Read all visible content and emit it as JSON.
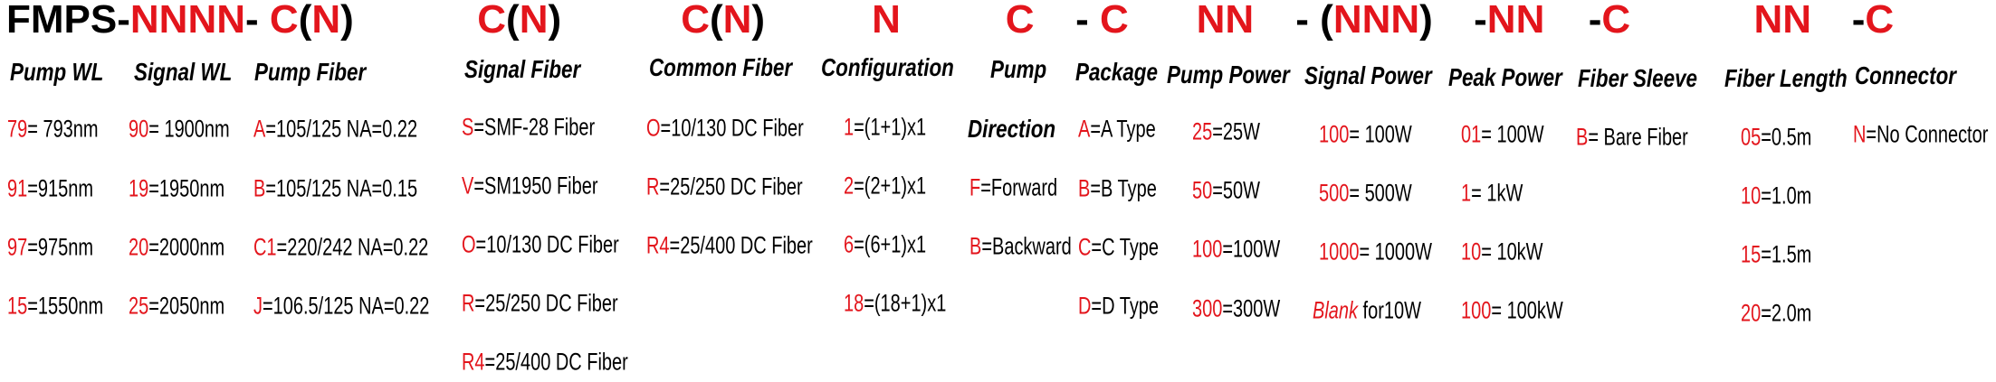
{
  "code_groups": [
    {
      "parts": [
        {
          "text": "FMPS-",
          "red": false
        },
        {
          "text": "NNNN",
          "red": true
        },
        {
          "text": "- ",
          "red": false
        },
        {
          "text": "C",
          "red": true
        },
        {
          "text": "(",
          "red": false
        },
        {
          "text": "N",
          "red": true
        },
        {
          "text": ")",
          "red": false
        }
      ]
    },
    {
      "parts": [
        {
          "text": "C",
          "red": true
        },
        {
          "text": "(",
          "red": false
        },
        {
          "text": "N",
          "red": true
        },
        {
          "text": ")",
          "red": false
        }
      ]
    },
    {
      "parts": [
        {
          "text": "C",
          "red": true
        },
        {
          "text": "(",
          "red": false
        },
        {
          "text": "N",
          "red": true
        },
        {
          "text": ")",
          "red": false
        }
      ]
    },
    {
      "parts": [
        {
          "text": "N",
          "red": true
        }
      ]
    },
    {
      "parts": [
        {
          "text": "C",
          "red": true
        }
      ]
    },
    {
      "parts": [
        {
          "text": "- ",
          "red": false
        },
        {
          "text": "C",
          "red": true
        }
      ]
    },
    {
      "parts": [
        {
          "text": "NN",
          "red": true
        }
      ]
    },
    {
      "parts": [
        {
          "text": "- (",
          "red": false
        },
        {
          "text": "NNN",
          "red": true
        },
        {
          "text": ")",
          "red": false
        }
      ]
    },
    {
      "parts": [
        {
          "text": "-",
          "red": false
        },
        {
          "text": "NN",
          "red": true
        }
      ]
    },
    {
      "parts": [
        {
          "text": "-",
          "red": false
        },
        {
          "text": "C",
          "red": true
        }
      ]
    },
    {
      "parts": [
        {
          "text": "NN",
          "red": true
        }
      ]
    },
    {
      "parts": [
        {
          "text": "-",
          "red": false
        },
        {
          "text": "C",
          "red": true
        }
      ]
    }
  ],
  "columns": [
    {
      "title": "Pump WL",
      "entries": [
        {
          "code": "79",
          "text": "= 793nm"
        },
        {
          "code": "91",
          "text": "=915nm"
        },
        {
          "code": "97",
          "text": "=975nm"
        },
        {
          "code": "15",
          "text": "=1550nm"
        }
      ]
    },
    {
      "title": "Signal WL",
      "entries": [
        {
          "code": "90",
          "text": "= 1900nm"
        },
        {
          "code": "19",
          "text": "=1950nm"
        },
        {
          "code": "20",
          "text": "=2000nm"
        },
        {
          "code": "25",
          "text": "=2050nm"
        }
      ]
    },
    {
      "title": "Pump Fiber",
      "entries": [
        {
          "code": "A",
          "text": "=105/125 NA=0.22"
        },
        {
          "code": "B",
          "text": "=105/125 NA=0.15"
        },
        {
          "code": "C1",
          "text": "=220/242 NA=0.22"
        },
        {
          "code": "J",
          "text": "=106.5/125 NA=0.22"
        }
      ]
    },
    {
      "title": "Signal Fiber",
      "entries": [
        {
          "code": "S",
          "text": "=SMF-28 Fiber"
        },
        {
          "code": "V",
          "text": "=SM1950 Fiber"
        },
        {
          "code": "O",
          "text": "=10/130 DC Fiber"
        },
        {
          "code": "R",
          "text": "=25/250 DC Fiber"
        },
        {
          "code": "R4",
          "text": "=25/400 DC Fiber"
        }
      ]
    },
    {
      "title": "Common Fiber",
      "entries": [
        {
          "code": "O",
          "text": "=10/130 DC Fiber"
        },
        {
          "code": "R",
          "text": "=25/250 DC Fiber"
        },
        {
          "code": "R4",
          "text": "=25/400 DC Fiber"
        }
      ]
    },
    {
      "title": "Configuration",
      "entries": [
        {
          "code": "1",
          "text": "=(1+1)x1"
        },
        {
          "code": "2",
          "text": "=(2+1)x1"
        },
        {
          "code": "6",
          "text": "=(6+1)x1"
        },
        {
          "code": "18",
          "text": "=(18+1)x1"
        }
      ]
    },
    {
      "title": "Pump",
      "subtitle": "Direction",
      "entries": [
        {
          "code": "F",
          "text": "=Forward"
        },
        {
          "code": "B",
          "text": "=Backward"
        }
      ]
    },
    {
      "title": "Package",
      "entries": [
        {
          "code": "A",
          "text": "=A Type"
        },
        {
          "code": "B",
          "text": "=B Type"
        },
        {
          "code": "C",
          "text": "=C Type"
        },
        {
          "code": "D",
          "text": "=D Type"
        }
      ]
    },
    {
      "title": "Pump Power",
      "entries": [
        {
          "code": "25",
          "text": "=25W"
        },
        {
          "code": "50",
          "text": "=50W"
        },
        {
          "code": "100",
          "text": "=100W"
        },
        {
          "code": "300",
          "text": "=300W"
        }
      ]
    },
    {
      "title": "Signal Power",
      "entries": [
        {
          "code": "100",
          "text": "= 100W"
        },
        {
          "code": "500",
          "text": "= 500W"
        },
        {
          "code": "1000",
          "text": "= 1000W"
        },
        {
          "code": "Blank",
          "text": " for10W",
          "code_italic": true
        }
      ]
    },
    {
      "title": "Peak Power",
      "entries": [
        {
          "code": "01",
          "text": "= 100W"
        },
        {
          "code": "1",
          "text": "= 1kW"
        },
        {
          "code": "10",
          "text": "= 10kW"
        },
        {
          "code": "100",
          "text": "= 100kW"
        }
      ]
    },
    {
      "title": "Fiber Sleeve",
      "entries": [
        {
          "code": "B",
          "text": "= Bare Fiber"
        }
      ]
    },
    {
      "title": "Fiber Length",
      "entries": [
        {
          "code": "05",
          "text": "=0.5m"
        },
        {
          "code": "10",
          "text": "=1.0m"
        },
        {
          "code": "15",
          "text": "=1.5m"
        },
        {
          "code": "20",
          "text": "=2.0m"
        }
      ]
    },
    {
      "title": "Connector",
      "entries": [
        {
          "code": "N",
          "text": "=No Connector"
        }
      ]
    }
  ]
}
